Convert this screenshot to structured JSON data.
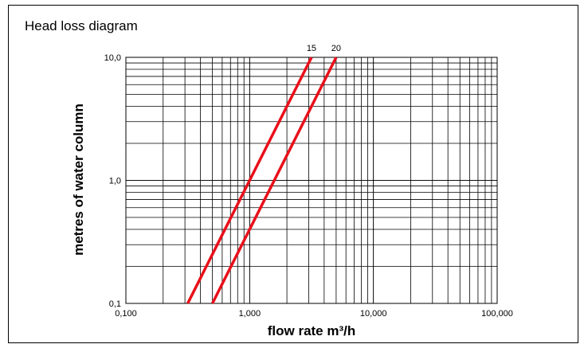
{
  "chart_data": {
    "type": "line",
    "title": "Head loss diagram",
    "xlabel": "flow rate  m³/h",
    "ylabel": "metres of water column",
    "x_scale": "log",
    "y_scale": "log",
    "xlim": [
      0.1,
      100
    ],
    "ylim": [
      0.1,
      10
    ],
    "x_ticks": [
      "0,100",
      "1,000",
      "10,000",
      "100,000"
    ],
    "y_ticks": [
      "0,1",
      "1,0",
      "10,0"
    ],
    "grid": true,
    "series": [
      {
        "name": "15",
        "color": "#e8101a",
        "points": [
          [
            0.316,
            0.1
          ],
          [
            3.16,
            10
          ]
        ]
      },
      {
        "name": "20",
        "color": "#e8101a",
        "points": [
          [
            0.5,
            0.1
          ],
          [
            5.0,
            10
          ]
        ]
      }
    ]
  }
}
